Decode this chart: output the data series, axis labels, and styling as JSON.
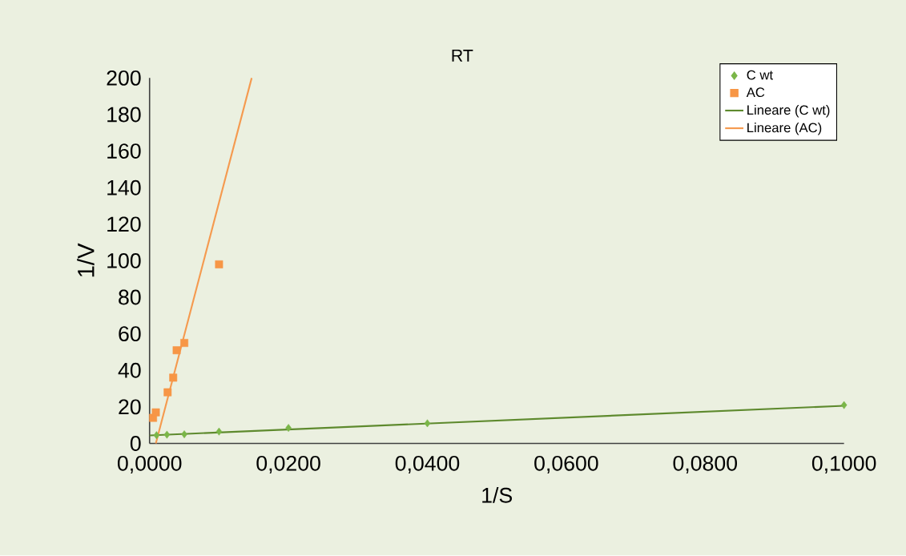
{
  "chart_data": {
    "type": "scatter",
    "title": "RT",
    "xlabel": "1/S",
    "ylabel": "1/V",
    "xlim": [
      0,
      0.1
    ],
    "ylim": [
      0,
      200
    ],
    "xticks": [
      {
        "value": 0,
        "label": "0,0000"
      },
      {
        "value": 0.02,
        "label": "0,0200"
      },
      {
        "value": 0.04,
        "label": "0,0400"
      },
      {
        "value": 0.06,
        "label": "0,0600"
      },
      {
        "value": 0.08,
        "label": "0,0800"
      },
      {
        "value": 0.1,
        "label": "0,1000"
      }
    ],
    "yticks": [
      0,
      20,
      40,
      60,
      80,
      100,
      120,
      140,
      160,
      180,
      200
    ],
    "legend": "top right",
    "series": [
      {
        "name": "C wt",
        "type": "scatter",
        "marker": "diamond",
        "color": "#7ab648",
        "x": [
          0.001,
          0.0025,
          0.005,
          0.01,
          0.02,
          0.04,
          0.1
        ],
        "values": [
          4.5,
          4.8,
          5,
          6.5,
          8.5,
          11,
          21
        ]
      },
      {
        "name": "AC",
        "type": "scatter",
        "marker": "square",
        "color": "#f79646",
        "x": [
          0.0005,
          0.0009,
          0.0026,
          0.0034,
          0.0039,
          0.005,
          0.01
        ],
        "values": [
          14,
          17,
          28,
          36,
          51,
          55,
          98
        ]
      },
      {
        "name": "Lineare (C wt)",
        "type": "line",
        "marker": "none",
        "color": "#5e8a2e",
        "x": [
          0,
          0.1
        ],
        "values": [
          4.4,
          20.6
        ]
      },
      {
        "name": "Lineare (AC)",
        "type": "line",
        "marker": "none",
        "color": "#f59a4f",
        "x": [
          0.0009,
          0.0147
        ],
        "values": [
          0,
          200
        ]
      }
    ]
  }
}
